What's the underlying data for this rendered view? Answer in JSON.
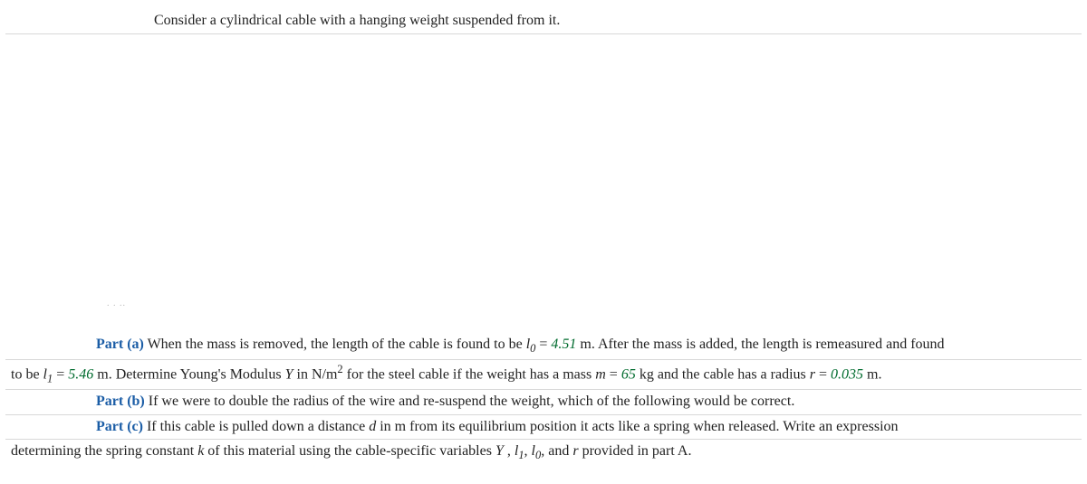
{
  "colors": {
    "text": "#222222",
    "partLabel": "#1b5da6",
    "value": "#006b2e",
    "divider": "#d8d8d8",
    "background": "#ffffff"
  },
  "typography": {
    "family": "Georgia, Times New Roman, serif",
    "baseSizePx": 16,
    "partLabelWeight": "bold"
  },
  "intro": {
    "text": "Consider a cylindrical cable with a hanging weight suspended from it."
  },
  "hangingMark": ". . ..",
  "partA": {
    "label": "Part (a)",
    "seg1": "  When the mass is removed, the length of the cable is found to be ",
    "l0_sym": "l",
    "l0_sub": "0",
    "eq": " = ",
    "l0_val": "4.51",
    "seg2": " m. After the mass is added, the length is remeasured and found",
    "cont1": "to be ",
    "l1_sym": "l",
    "l1_sub": "1",
    "l1_val": "5.46",
    "seg3": " m. Determine Young's Modulus ",
    "Y": "Y",
    "seg4": " in N/m",
    "sup2": "2",
    "seg5": " for the steel cable if the weight has a mass ",
    "m": "m",
    "m_val": "65",
    "seg6": " kg and the cable has a radius ",
    "r": "r",
    "r_val": "0.035",
    "seg7": " m."
  },
  "partB": {
    "label": "Part (b)",
    "text": "  If we were to double the radius of the wire and re-suspend the weight, which of the following would be correct."
  },
  "partC": {
    "label": "Part (c)",
    "seg1": "  If this cable is pulled down a distance ",
    "d": "d",
    "seg2": " in m from its equilibrium position it acts like a spring when released. Write an expression",
    "cont1": "determining the spring constant ",
    "k": "k",
    "seg3": " of this material using the cable-specific variables ",
    "Y": "Y",
    "comma": " , ",
    "l1_sym": "l",
    "l1_sub": "1",
    "sep": ", ",
    "l0_sym": "l",
    "l0_sub": "0",
    "seg4": ", and ",
    "r": "r",
    "seg5": " provided in part A."
  }
}
